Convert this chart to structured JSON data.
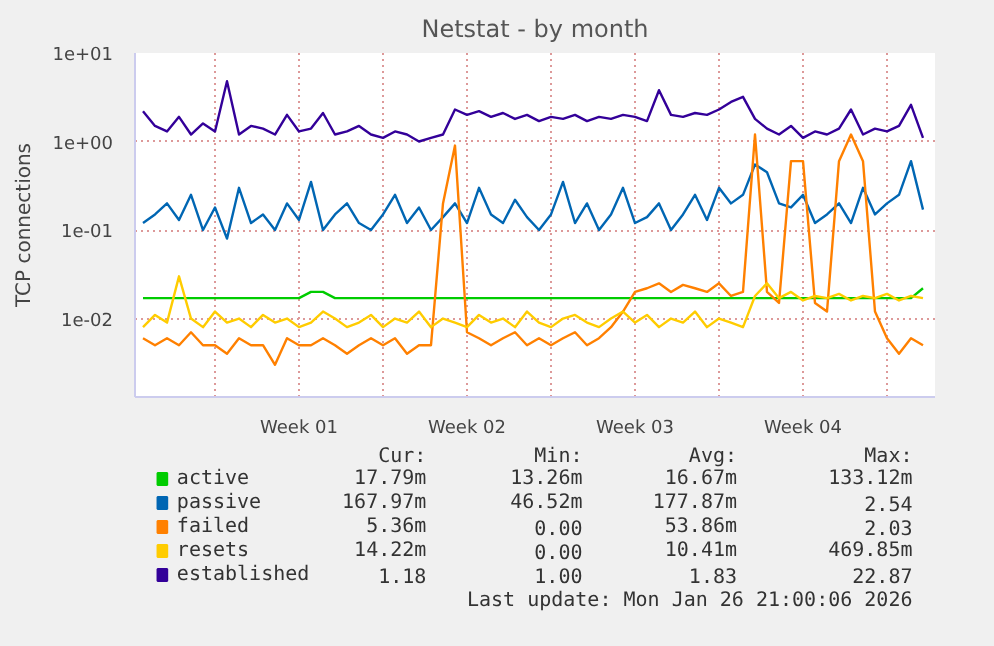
{
  "chart_data": {
    "type": "line",
    "title": "Netstat - by month",
    "ylabel": "TCP connections",
    "log": true,
    "grid": true,
    "legend": "bottom left",
    "xlim": [
      "2025-12-24T16:00",
      "2026-01-27T00:00"
    ],
    "ylim": [
      0.0013,
      10
    ],
    "xticks": [
      {
        "value": "2025-12-28",
        "label": null
      },
      {
        "value": "2025-12-31T12:00",
        "label": "Week 01"
      },
      {
        "value": "2026-01-04",
        "label": null
      },
      {
        "value": "2026-01-07T12:00",
        "label": "Week 02"
      },
      {
        "value": "2026-01-11",
        "label": null
      },
      {
        "value": "2026-01-14T12:00",
        "label": "Week 03"
      },
      {
        "value": "2026-01-18",
        "label": null
      },
      {
        "value": "2026-01-21T12:00",
        "label": "Week 04"
      },
      {
        "value": "2026-01-25",
        "label": null
      }
    ],
    "yticks": [
      {
        "value": 0.01,
        "label": "1e-02"
      },
      {
        "value": 0.1,
        "label": "1e-01"
      },
      {
        "value": 1,
        "label": "1e+00"
      },
      {
        "value": 10,
        "label": "1e+01"
      }
    ],
    "x": [
      "2025-12-25T00:00",
      "2025-12-25T12:00",
      "2025-12-26T00:00",
      "2025-12-26T12:00",
      "2025-12-27T00:00",
      "2025-12-27T12:00",
      "2025-12-28T00:00",
      "2025-12-28T12:00",
      "2025-12-29T00:00",
      "2025-12-29T12:00",
      "2025-12-30T00:00",
      "2025-12-30T12:00",
      "2025-12-31T00:00",
      "2025-12-31T12:00",
      "2026-01-01T00:00",
      "2026-01-01T12:00",
      "2026-01-02T00:00",
      "2026-01-02T12:00",
      "2026-01-03T00:00",
      "2026-01-03T12:00",
      "2026-01-04T00:00",
      "2026-01-04T12:00",
      "2026-01-05T00:00",
      "2026-01-05T12:00",
      "2026-01-06T00:00",
      "2026-01-06T12:00",
      "2026-01-07T00:00",
      "2026-01-07T12:00",
      "2026-01-08T00:00",
      "2026-01-08T12:00",
      "2026-01-09T00:00",
      "2026-01-09T12:00",
      "2026-01-10T00:00",
      "2026-01-10T12:00",
      "2026-01-11T00:00",
      "2026-01-11T12:00",
      "2026-01-12T00:00",
      "2026-01-12T12:00",
      "2026-01-13T00:00",
      "2026-01-13T12:00",
      "2026-01-14T00:00",
      "2026-01-14T12:00",
      "2026-01-15T00:00",
      "2026-01-15T12:00",
      "2026-01-16T00:00",
      "2026-01-16T12:00",
      "2026-01-17T00:00",
      "2026-01-17T12:00",
      "2026-01-18T00:00",
      "2026-01-18T12:00",
      "2026-01-19T00:00",
      "2026-01-19T12:00",
      "2026-01-20T00:00",
      "2026-01-20T12:00",
      "2026-01-21T00:00",
      "2026-01-21T12:00",
      "2026-01-22T00:00",
      "2026-01-22T12:00",
      "2026-01-23T00:00",
      "2026-01-23T12:00",
      "2026-01-24T00:00",
      "2026-01-24T12:00",
      "2026-01-25T00:00",
      "2026-01-25T12:00",
      "2026-01-26T00:00",
      "2026-01-26T12:00"
    ],
    "series": [
      {
        "name": "active",
        "color": "#00cc00",
        "values": [
          0.017,
          0.017,
          0.017,
          0.017,
          0.017,
          0.017,
          0.017,
          0.017,
          0.017,
          0.017,
          0.017,
          0.017,
          0.017,
          0.017,
          0.02,
          0.02,
          0.017,
          0.017,
          0.017,
          0.017,
          0.017,
          0.017,
          0.017,
          0.017,
          0.017,
          0.017,
          0.017,
          0.017,
          0.017,
          0.017,
          0.017,
          0.017,
          0.017,
          0.017,
          0.017,
          0.017,
          0.017,
          0.017,
          0.017,
          0.017,
          0.017,
          0.017,
          0.017,
          0.017,
          0.017,
          0.017,
          0.017,
          0.017,
          0.017,
          0.017,
          0.017,
          0.017,
          0.017,
          0.017,
          0.017,
          0.017,
          0.017,
          0.017,
          0.017,
          0.017,
          0.017,
          0.017,
          0.017,
          0.017,
          0.017,
          0.022
        ]
      },
      {
        "name": "passive",
        "color": "#0066b3",
        "values": [
          0.12,
          0.15,
          0.2,
          0.13,
          0.25,
          0.1,
          0.18,
          0.08,
          0.3,
          0.12,
          0.15,
          0.1,
          0.2,
          0.13,
          0.35,
          0.1,
          0.15,
          0.2,
          0.12,
          0.1,
          0.15,
          0.25,
          0.12,
          0.18,
          0.1,
          0.14,
          0.2,
          0.12,
          0.3,
          0.15,
          0.12,
          0.22,
          0.14,
          0.1,
          0.15,
          0.35,
          0.12,
          0.2,
          0.1,
          0.15,
          0.3,
          0.12,
          0.14,
          0.2,
          0.1,
          0.15,
          0.25,
          0.13,
          0.3,
          0.2,
          0.25,
          0.55,
          0.45,
          0.2,
          0.18,
          0.25,
          0.12,
          0.15,
          0.2,
          0.12,
          0.3,
          0.15,
          0.2,
          0.25,
          0.6,
          0.17
        ]
      },
      {
        "name": "failed",
        "color": "#ff8000",
        "values": [
          0.006,
          0.005,
          0.006,
          0.005,
          0.007,
          0.005,
          0.005,
          0.004,
          0.006,
          0.005,
          0.005,
          0.003,
          0.006,
          0.005,
          0.005,
          0.006,
          0.005,
          0.004,
          0.005,
          0.006,
          0.005,
          0.006,
          0.004,
          0.005,
          0.005,
          0.2,
          0.9,
          0.007,
          0.006,
          0.005,
          0.006,
          0.007,
          0.005,
          0.006,
          0.005,
          0.006,
          0.007,
          0.005,
          0.006,
          0.008,
          0.012,
          0.02,
          0.022,
          0.025,
          0.02,
          0.024,
          0.022,
          0.02,
          0.025,
          0.018,
          0.02,
          1.2,
          0.02,
          0.015,
          0.6,
          0.6,
          0.015,
          0.012,
          0.6,
          1.2,
          0.6,
          0.012,
          0.006,
          0.004,
          0.006,
          0.005
        ]
      },
      {
        "name": "resets",
        "color": "#ffcc00",
        "values": [
          0.008,
          0.011,
          0.009,
          0.03,
          0.01,
          0.008,
          0.012,
          0.009,
          0.01,
          0.008,
          0.011,
          0.009,
          0.01,
          0.008,
          0.009,
          0.012,
          0.01,
          0.008,
          0.009,
          0.011,
          0.008,
          0.01,
          0.009,
          0.012,
          0.008,
          0.01,
          0.009,
          0.008,
          0.011,
          0.009,
          0.01,
          0.008,
          0.012,
          0.009,
          0.008,
          0.01,
          0.011,
          0.009,
          0.008,
          0.01,
          0.012,
          0.009,
          0.011,
          0.008,
          0.01,
          0.009,
          0.012,
          0.008,
          0.01,
          0.009,
          0.008,
          0.018,
          0.025,
          0.017,
          0.02,
          0.016,
          0.018,
          0.017,
          0.019,
          0.016,
          0.018,
          0.017,
          0.019,
          0.016,
          0.018,
          0.017
        ]
      },
      {
        "name": "established",
        "color": "#330099",
        "values": [
          2.2,
          1.5,
          1.3,
          1.9,
          1.2,
          1.6,
          1.3,
          4.8,
          1.2,
          1.5,
          1.4,
          1.2,
          2.0,
          1.3,
          1.4,
          2.1,
          1.2,
          1.3,
          1.5,
          1.2,
          1.1,
          1.3,
          1.2,
          1.0,
          1.1,
          1.2,
          2.3,
          2.0,
          2.2,
          1.9,
          2.1,
          1.8,
          2.0,
          1.7,
          1.9,
          1.8,
          2.0,
          1.7,
          1.9,
          1.8,
          2.0,
          1.9,
          1.7,
          3.8,
          2.0,
          1.9,
          2.1,
          2.0,
          2.3,
          2.8,
          3.2,
          1.8,
          1.4,
          1.2,
          1.5,
          1.1,
          1.3,
          1.2,
          1.4,
          2.3,
          1.2,
          1.4,
          1.3,
          1.5,
          2.6,
          1.1
        ]
      }
    ],
    "annotations": [
      "Cur:",
      "Min:",
      "Avg:",
      "Max:",
      "17.79m",
      "13.26m",
      "16.67m",
      "133.12m",
      "167.97m",
      "46.52m",
      "177.87m",
      "2.54",
      "5.36m",
      "0.00",
      "53.86m",
      "2.03",
      "14.22m",
      "0.00",
      "10.41m",
      "469.85m",
      "1.18",
      "1.00",
      "1.83",
      "22.87",
      "Last update: Mon Jan 26 21:00:06 2026"
    ]
  }
}
